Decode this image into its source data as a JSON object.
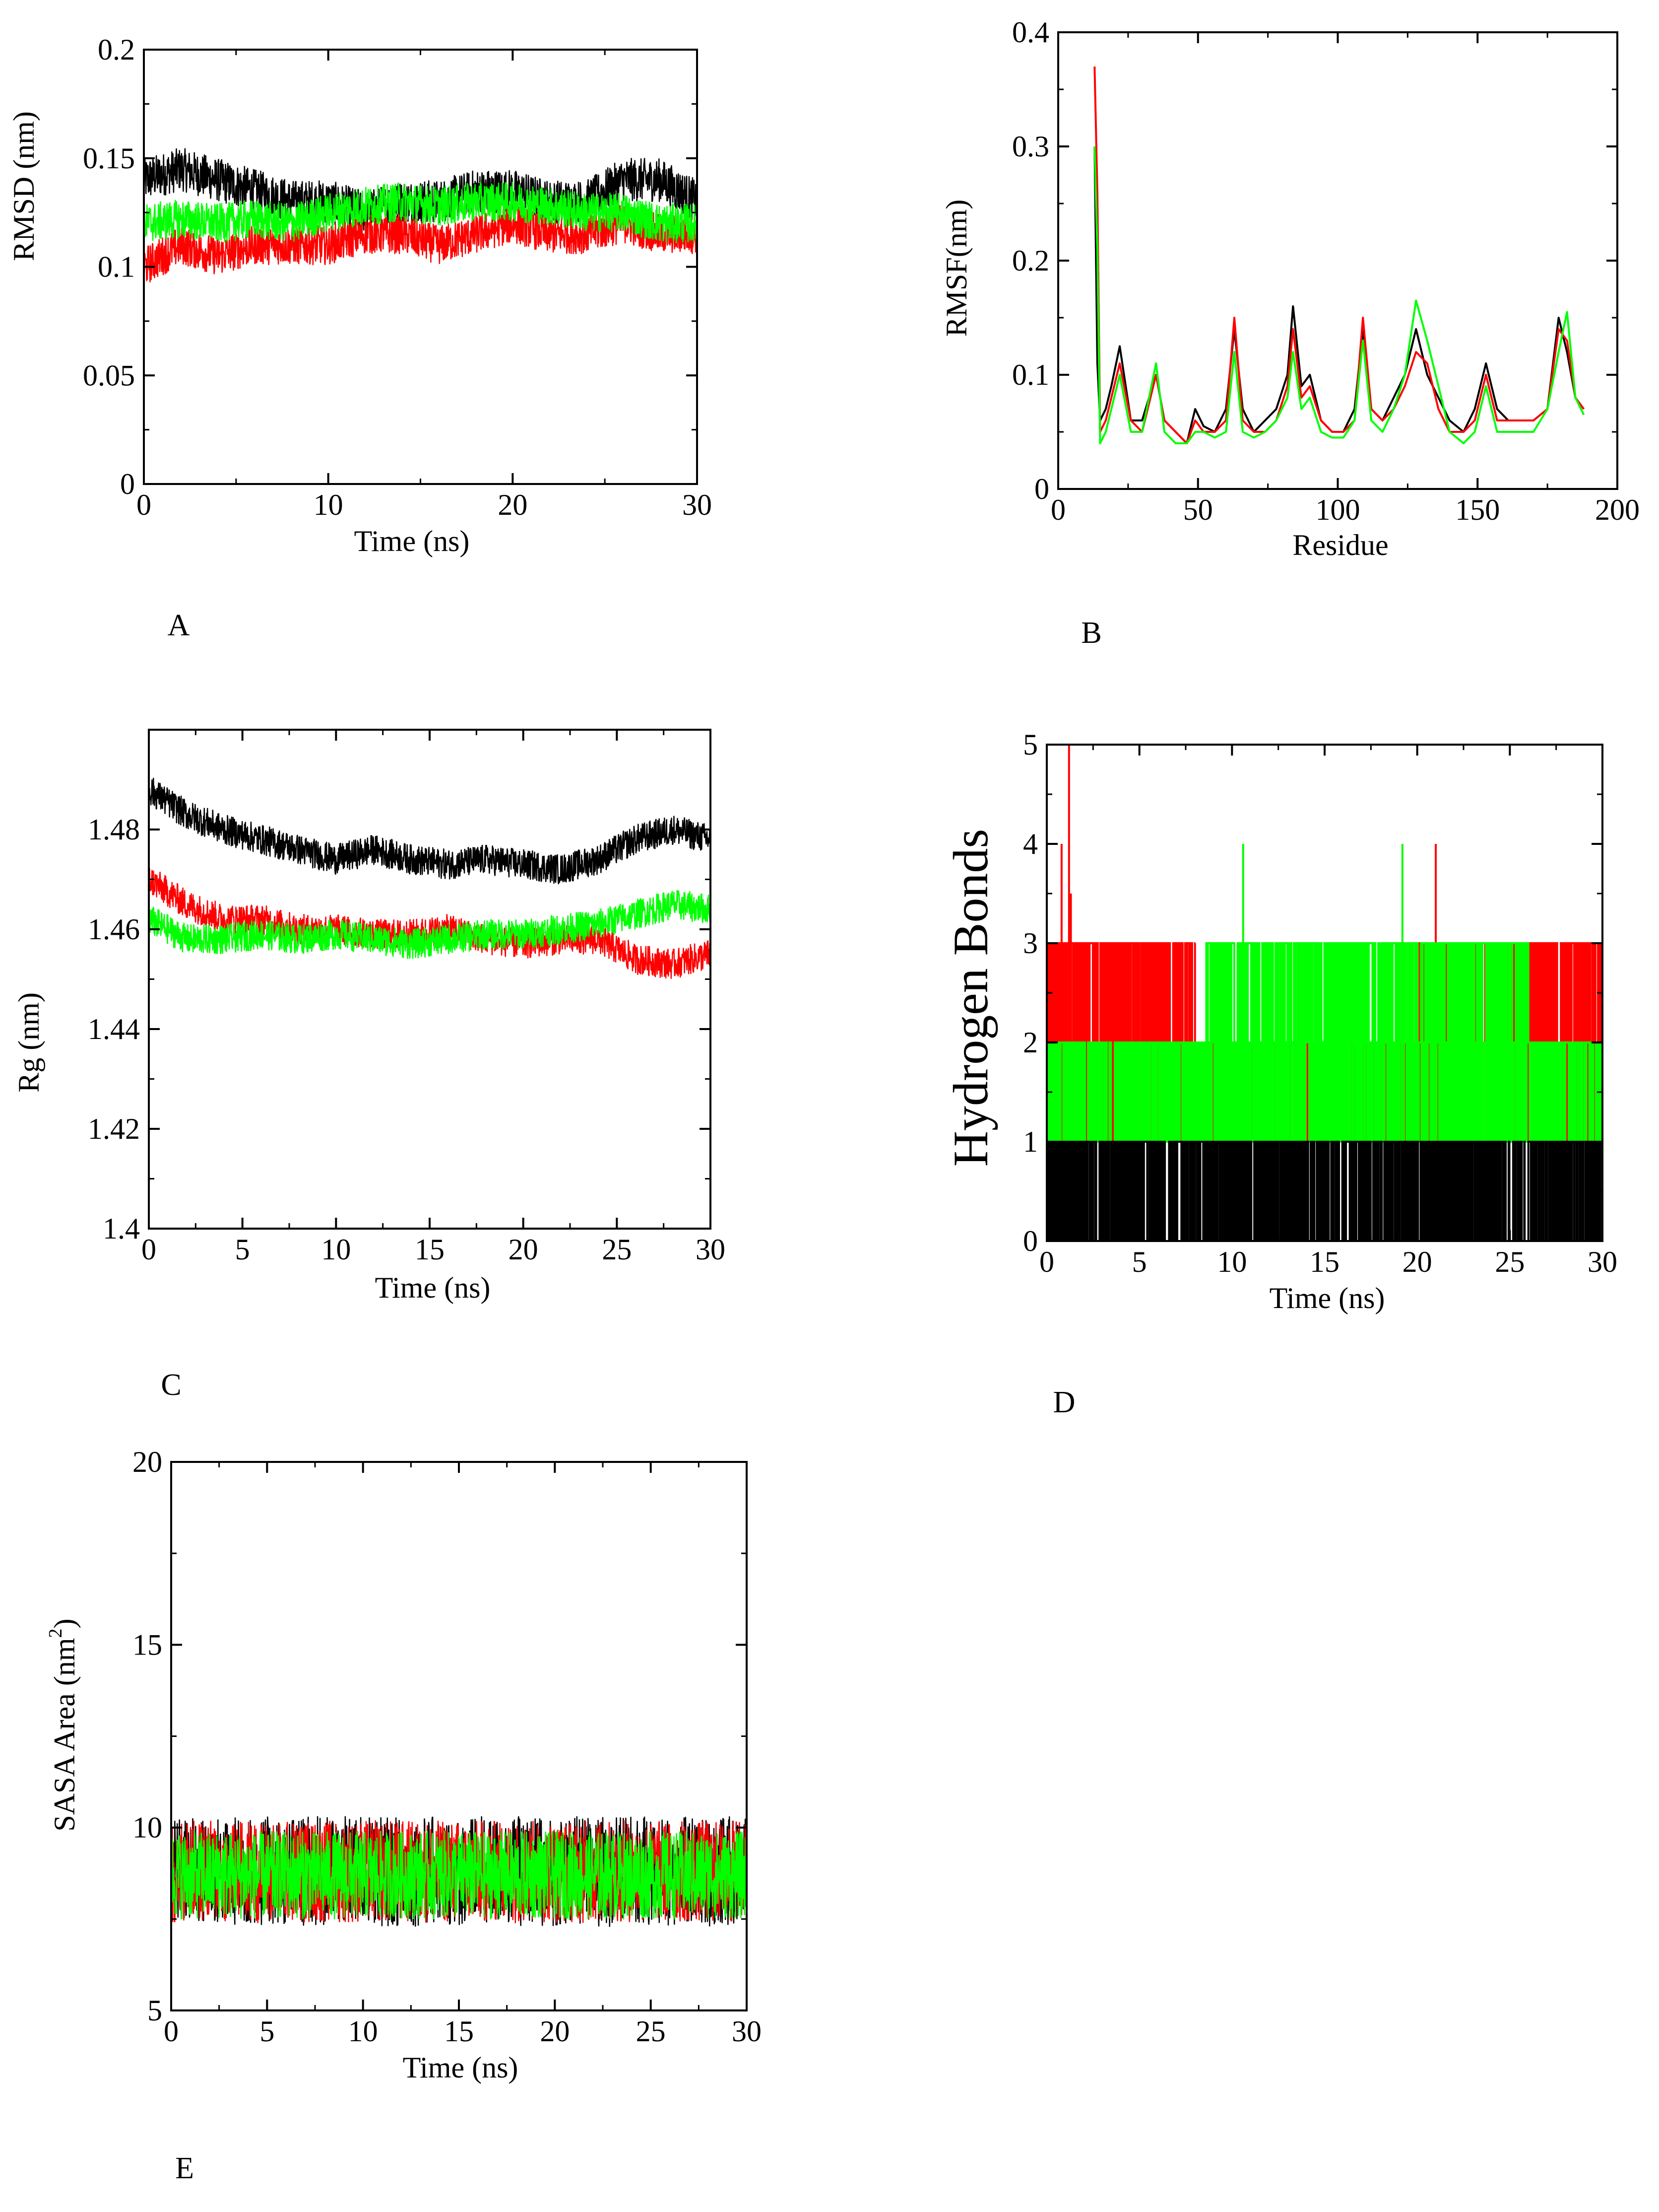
{
  "colors": {
    "black": "#000000",
    "red": "#ff0000",
    "green": "#00ff00"
  },
  "panel_labels": {
    "A": "A",
    "B": "B",
    "C": "C",
    "D": "D",
    "E": "E"
  },
  "chart_data": [
    {
      "id": "A",
      "type": "line",
      "title": "",
      "xlabel": "Time (ns)",
      "ylabel": "RMSD (nm)",
      "xlim": [
        0,
        30
      ],
      "ylim": [
        0,
        0.2
      ],
      "xticks": [
        0,
        10,
        20,
        30
      ],
      "yticks": [
        0,
        0.05,
        0.1,
        0.15,
        0.2
      ],
      "xtick_labels": [
        "0",
        "10",
        "20",
        "30"
      ],
      "ytick_labels": [
        "0",
        "0.05",
        "0.1",
        "0.15",
        "0.2"
      ],
      "series": [
        {
          "name": "black",
          "color": "#000000",
          "x": [
            0,
            2,
            4,
            6,
            8,
            10,
            12,
            14,
            16,
            18,
            20,
            22,
            24,
            26,
            28,
            30
          ],
          "y": [
            0.14,
            0.145,
            0.14,
            0.135,
            0.13,
            0.13,
            0.125,
            0.13,
            0.13,
            0.135,
            0.135,
            0.13,
            0.13,
            0.14,
            0.14,
            0.13
          ],
          "noise": 0.01
        },
        {
          "name": "red",
          "color": "#ff0000",
          "x": [
            0,
            2,
            4,
            6,
            8,
            10,
            12,
            14,
            16,
            18,
            20,
            22,
            24,
            26,
            28,
            30
          ],
          "y": [
            0.1,
            0.11,
            0.105,
            0.11,
            0.11,
            0.11,
            0.115,
            0.115,
            0.11,
            0.115,
            0.12,
            0.115,
            0.115,
            0.12,
            0.115,
            0.115
          ],
          "noise": 0.009
        },
        {
          "name": "green",
          "color": "#00ff00",
          "x": [
            0,
            2,
            4,
            6,
            8,
            10,
            12,
            14,
            16,
            18,
            20,
            22,
            24,
            26,
            28,
            30
          ],
          "y": [
            0.12,
            0.122,
            0.12,
            0.122,
            0.12,
            0.125,
            0.128,
            0.13,
            0.128,
            0.13,
            0.13,
            0.128,
            0.125,
            0.125,
            0.12,
            0.12
          ],
          "noise": 0.009
        }
      ]
    },
    {
      "id": "B",
      "type": "line",
      "title": "",
      "xlabel": "Residue",
      "ylabel": "RMSF(nm)",
      "xlim": [
        0,
        200
      ],
      "ylim": [
        0,
        0.4
      ],
      "xticks": [
        0,
        50,
        100,
        150,
        200
      ],
      "yticks": [
        0,
        0.1,
        0.2,
        0.3,
        0.4
      ],
      "xtick_labels": [
        "0",
        "50",
        "100",
        "150",
        "200"
      ],
      "ytick_labels": [
        "0",
        "0.1",
        "0.2",
        "0.3",
        "0.4"
      ],
      "series": [
        {
          "name": "black",
          "color": "#000000",
          "x": [
            13,
            14,
            15,
            17,
            19,
            22,
            26,
            30,
            35,
            38,
            42,
            46,
            49,
            52,
            56,
            60,
            63,
            66,
            70,
            74,
            78,
            82,
            84,
            87,
            90,
            94,
            98,
            102,
            106,
            109,
            112,
            116,
            120,
            124,
            128,
            132,
            136,
            140,
            145,
            149,
            153,
            157,
            161,
            165,
            170,
            175,
            179,
            182,
            185,
            188
          ],
          "y": [
            0.3,
            0.11,
            0.06,
            0.07,
            0.09,
            0.125,
            0.06,
            0.06,
            0.1,
            0.06,
            0.05,
            0.04,
            0.07,
            0.055,
            0.05,
            0.07,
            0.14,
            0.07,
            0.05,
            0.06,
            0.07,
            0.1,
            0.16,
            0.09,
            0.1,
            0.06,
            0.05,
            0.05,
            0.07,
            0.14,
            0.07,
            0.06,
            0.08,
            0.1,
            0.14,
            0.1,
            0.08,
            0.06,
            0.05,
            0.07,
            0.11,
            0.07,
            0.06,
            0.06,
            0.06,
            0.07,
            0.15,
            0.12,
            0.08,
            0.07
          ],
          "noise": 0
        },
        {
          "name": "red",
          "color": "#ff0000",
          "x": [
            13,
            14,
            15,
            17,
            19,
            22,
            26,
            30,
            35,
            38,
            42,
            46,
            49,
            52,
            56,
            60,
            63,
            66,
            70,
            74,
            78,
            82,
            84,
            87,
            90,
            94,
            98,
            102,
            106,
            109,
            112,
            116,
            120,
            124,
            128,
            132,
            136,
            140,
            145,
            149,
            153,
            157,
            161,
            165,
            170,
            175,
            179,
            182,
            185,
            188
          ],
          "y": [
            0.37,
            0.26,
            0.05,
            0.06,
            0.08,
            0.11,
            0.06,
            0.05,
            0.1,
            0.06,
            0.05,
            0.04,
            0.06,
            0.05,
            0.05,
            0.06,
            0.15,
            0.06,
            0.05,
            0.05,
            0.06,
            0.09,
            0.14,
            0.08,
            0.09,
            0.06,
            0.05,
            0.05,
            0.06,
            0.15,
            0.07,
            0.06,
            0.07,
            0.09,
            0.12,
            0.11,
            0.07,
            0.05,
            0.05,
            0.06,
            0.1,
            0.06,
            0.06,
            0.06,
            0.06,
            0.07,
            0.14,
            0.13,
            0.08,
            0.07
          ],
          "noise": 0
        },
        {
          "name": "green",
          "color": "#00ff00",
          "x": [
            13,
            14,
            15,
            17,
            19,
            22,
            26,
            30,
            35,
            38,
            42,
            46,
            49,
            52,
            56,
            60,
            63,
            66,
            70,
            74,
            78,
            82,
            84,
            87,
            90,
            94,
            98,
            102,
            106,
            109,
            112,
            116,
            120,
            124,
            128,
            132,
            136,
            140,
            145,
            149,
            153,
            157,
            161,
            165,
            170,
            175,
            179,
            182,
            185,
            188
          ],
          "y": [
            0.3,
            0.21,
            0.04,
            0.05,
            0.07,
            0.1,
            0.05,
            0.05,
            0.11,
            0.05,
            0.04,
            0.04,
            0.05,
            0.05,
            0.045,
            0.05,
            0.12,
            0.05,
            0.045,
            0.05,
            0.06,
            0.08,
            0.12,
            0.07,
            0.08,
            0.05,
            0.045,
            0.045,
            0.06,
            0.13,
            0.06,
            0.05,
            0.07,
            0.1,
            0.165,
            0.13,
            0.09,
            0.05,
            0.04,
            0.05,
            0.09,
            0.05,
            0.05,
            0.05,
            0.05,
            0.07,
            0.12,
            0.155,
            0.08,
            0.065
          ],
          "noise": 0
        }
      ]
    },
    {
      "id": "C",
      "type": "line",
      "title": "",
      "xlabel": "Time (ns)",
      "ylabel": "Rg (nm)",
      "xlim": [
        0,
        30
      ],
      "ylim": [
        1.4,
        1.5
      ],
      "xticks": [
        0,
        5,
        10,
        15,
        20,
        25,
        30
      ],
      "yticks": [
        1.4,
        1.42,
        1.44,
        1.46,
        1.48
      ],
      "xtick_labels": [
        "0",
        "5",
        "10",
        "15",
        "20",
        "25",
        "30"
      ],
      "ytick_labels": [
        "1.4",
        "1.42",
        "1.44",
        "1.46",
        "1.48"
      ],
      "series": [
        {
          "name": "black",
          "color": "#000000",
          "x": [
            0,
            2,
            4,
            6,
            8,
            10,
            12,
            14,
            16,
            18,
            20,
            22,
            24,
            26,
            28,
            30
          ],
          "y": [
            1.488,
            1.483,
            1.48,
            1.478,
            1.476,
            1.474,
            1.476,
            1.474,
            1.473,
            1.474,
            1.473,
            1.472,
            1.474,
            1.478,
            1.48,
            1.478
          ],
          "noise": 0.003
        },
        {
          "name": "red",
          "color": "#ff0000",
          "x": [
            0,
            2,
            4,
            6,
            8,
            10,
            12,
            14,
            16,
            18,
            20,
            22,
            24,
            26,
            28,
            30
          ],
          "y": [
            1.47,
            1.465,
            1.462,
            1.462,
            1.46,
            1.46,
            1.459,
            1.459,
            1.46,
            1.458,
            1.457,
            1.458,
            1.458,
            1.454,
            1.453,
            1.455
          ],
          "noise": 0.003
        },
        {
          "name": "green",
          "color": "#00ff00",
          "x": [
            0,
            2,
            4,
            6,
            8,
            10,
            12,
            14,
            16,
            18,
            20,
            22,
            24,
            26,
            28,
            30
          ],
          "y": [
            1.462,
            1.458,
            1.458,
            1.459,
            1.458,
            1.459,
            1.458,
            1.457,
            1.458,
            1.459,
            1.459,
            1.46,
            1.461,
            1.463,
            1.465,
            1.464
          ],
          "noise": 0.003
        }
      ]
    },
    {
      "id": "D",
      "type": "line",
      "title": "",
      "xlabel": "Time (ns)",
      "ylabel": "Hydrogen Bonds",
      "xlim": [
        0,
        30
      ],
      "ylim": [
        0,
        5
      ],
      "xticks": [
        0,
        5,
        10,
        15,
        20,
        25,
        30
      ],
      "yticks": [
        0,
        1,
        2,
        3,
        4,
        5
      ],
      "xtick_labels": [
        "0",
        "5",
        "10",
        "15",
        "20",
        "25",
        "30"
      ],
      "ytick_labels": [
        "0",
        "1",
        "2",
        "3",
        "4",
        "5"
      ],
      "series": [
        {
          "name": "red",
          "color": "#ff0000",
          "dominant_levels": [
            [
              0,
              2,
              1,
              3
            ],
            [
              2,
              8,
              1,
              3
            ],
            [
              8,
              20,
              1,
              2
            ],
            [
              20,
              26,
              1,
              3
            ],
            [
              26,
              30,
              1,
              3
            ]
          ],
          "spikes": [
            [
              1.2,
              5
            ],
            [
              0.8,
              4
            ],
            [
              21,
              4
            ],
            [
              1.3,
              3.5
            ]
          ]
        },
        {
          "name": "green",
          "color": "#00ff00",
          "dominant_levels": [
            [
              0,
              30,
              1,
              2
            ],
            [
              8.5,
              26,
              2,
              3
            ]
          ],
          "spikes": [
            [
              10.6,
              4
            ],
            [
              19.2,
              4
            ]
          ]
        },
        {
          "name": "black",
          "color": "#000000",
          "dominant_levels": [
            [
              0,
              30,
              0,
              1
            ]
          ],
          "spikes": []
        }
      ]
    },
    {
      "id": "E",
      "type": "line",
      "title": "",
      "xlabel": "Time (ns)",
      "ylabel": "SASA Area (nm²)",
      "ylabel_main": "SASA Area (nm",
      "ylabel_sup": "2",
      "ylabel_end": ")",
      "xlim": [
        0,
        30
      ],
      "ylim": [
        5,
        20
      ],
      "xticks": [
        0,
        5,
        10,
        15,
        20,
        25,
        30
      ],
      "yticks": [
        5,
        10,
        15,
        20
      ],
      "xtick_labels": [
        "0",
        "5",
        "10",
        "15",
        "20",
        "25",
        "30"
      ],
      "ytick_labels": [
        "5",
        "10",
        "15",
        "20"
      ],
      "series": [
        {
          "name": "black",
          "color": "#000000",
          "x": [
            0,
            30
          ],
          "y": [
            8.8,
            8.8
          ],
          "noise": 1.5
        },
        {
          "name": "red",
          "color": "#ff0000",
          "x": [
            0,
            30
          ],
          "y": [
            8.8,
            8.8
          ],
          "noise": 1.4
        },
        {
          "name": "green",
          "color": "#00ff00",
          "x": [
            0,
            30
          ],
          "y": [
            8.7,
            8.7
          ],
          "noise": 1.2
        }
      ]
    }
  ]
}
